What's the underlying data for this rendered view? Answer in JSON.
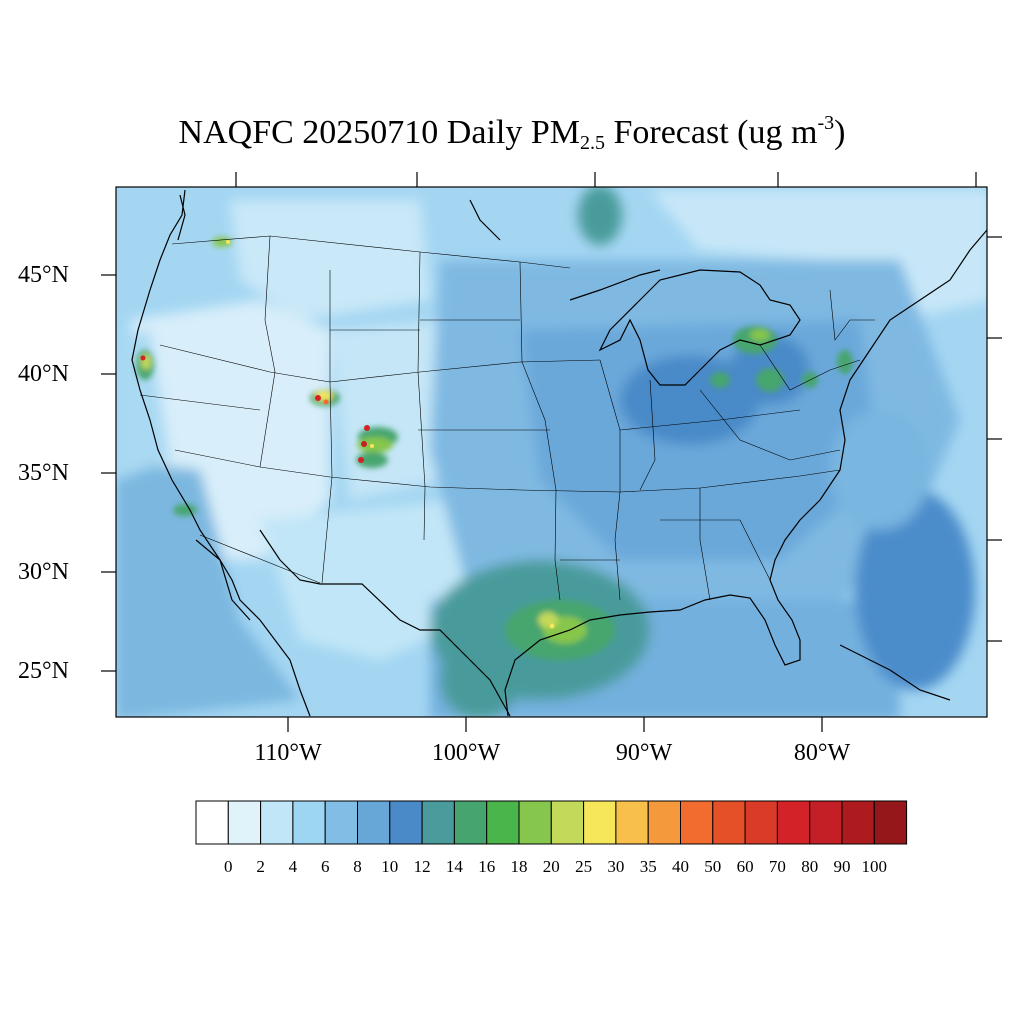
{
  "title": {
    "prefix": "NAQFC 20250710 Daily PM",
    "sub": "2.5",
    "mid": " Forecast (ug m",
    "sup": "-3",
    "suffix": ")"
  },
  "map": {
    "region": "Continental United States",
    "lat_labels": [
      "45°N",
      "40°N",
      "35°N",
      "30°N",
      "25°N"
    ],
    "lon_labels": [
      "110°W",
      "100°W",
      "90°W",
      "80°W"
    ]
  },
  "colorbar": {
    "colors": [
      "#ffffff",
      "#e0f3fb",
      "#c1e6f7",
      "#9dd6f2",
      "#81bde4",
      "#66a7d8",
      "#4a8ac8",
      "#4a9b9b",
      "#46a56e",
      "#4ab54a",
      "#86c64c",
      "#c3d95a",
      "#f6e65a",
      "#f8c04a",
      "#f59a3c",
      "#f16c2e",
      "#e65028",
      "#d93b28",
      "#d32228",
      "#c41e26",
      "#ad1b1f",
      "#95171a"
    ],
    "labels": [
      "0",
      "2",
      "4",
      "6",
      "8",
      "10",
      "12",
      "14",
      "16",
      "18",
      "20",
      "25",
      "30",
      "35",
      "40",
      "50",
      "60",
      "70",
      "80",
      "90",
      "100"
    ]
  }
}
